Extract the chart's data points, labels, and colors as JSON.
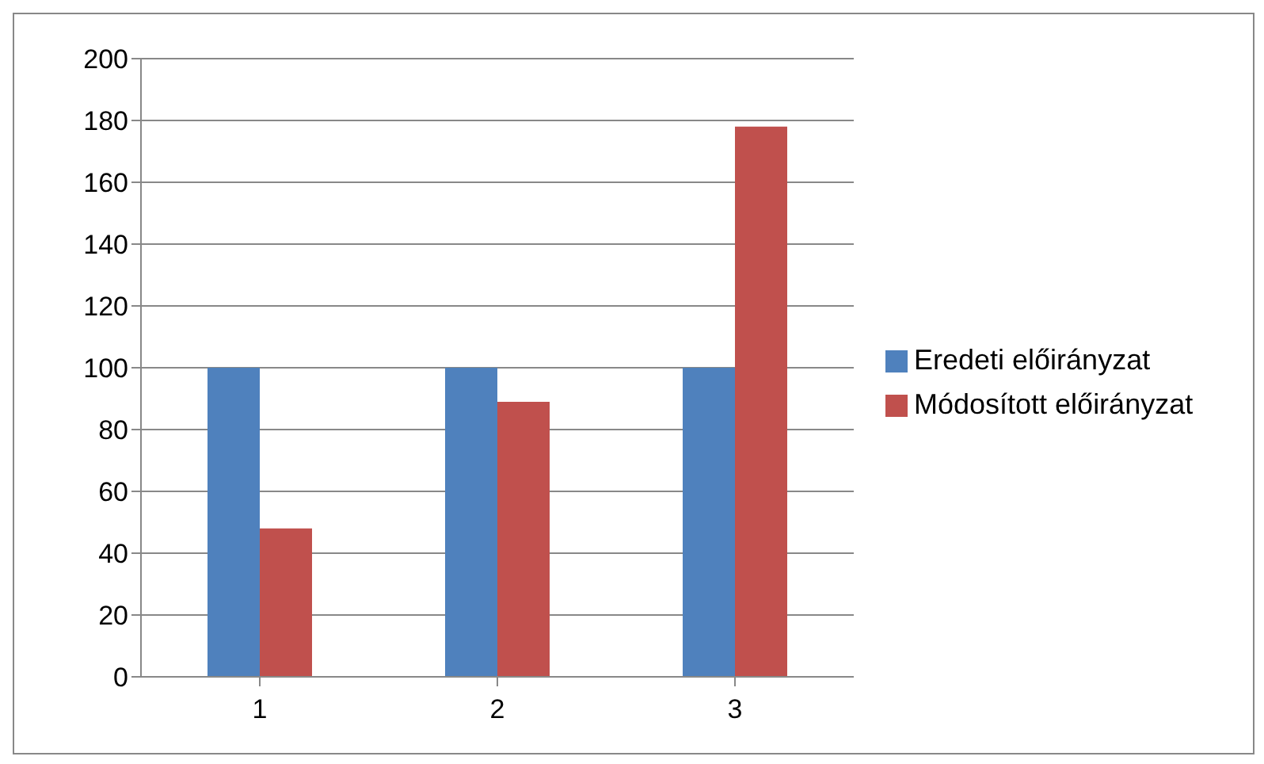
{
  "chart_data": {
    "type": "bar",
    "categories": [
      "1",
      "2",
      "3"
    ],
    "series": [
      {
        "name": "Eredeti előirányzat",
        "color": "#4f81bd",
        "values": [
          100,
          100,
          100
        ]
      },
      {
        "name": "Módosított előirányzat",
        "color": "#c0504d",
        "values": [
          48,
          89,
          178
        ]
      }
    ],
    "ylim": [
      0,
      200
    ],
    "yticks": [
      0,
      20,
      40,
      60,
      80,
      100,
      120,
      140,
      160,
      180,
      200
    ],
    "grid": "y",
    "legend": "right"
  }
}
